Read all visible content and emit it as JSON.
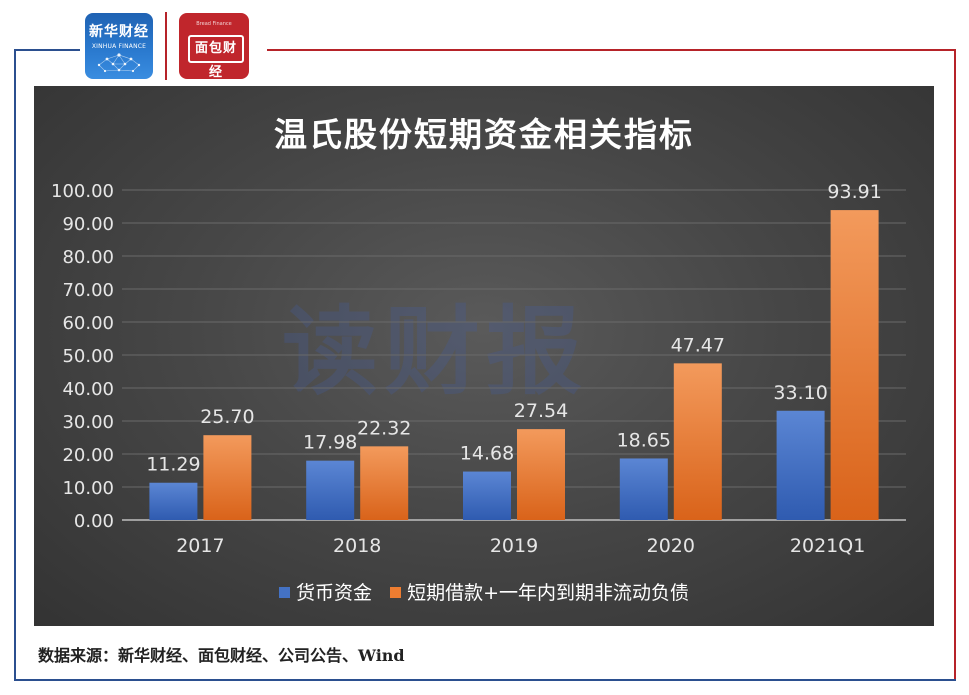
{
  "header": {
    "logo_left_cn": "新华财经",
    "logo_left_en": "XINHUA FINANCE",
    "logo_right_cn": "面包财经",
    "logo_right_en": "Bread Finance"
  },
  "watermark": "读财报",
  "source_text": "数据来源：新华财经、面包财经、公司公告、Wind",
  "colors": {
    "frame_blue": "#2b4f8f",
    "frame_red": "#b62329",
    "series_blue": "#4472c4",
    "series_orange": "#ed7d31"
  },
  "chart_data": {
    "type": "bar",
    "title": "温氏股份短期资金相关指标",
    "categories": [
      "2017",
      "2018",
      "2019",
      "2020",
      "2021Q1"
    ],
    "series": [
      {
        "name": "货币资金",
        "values": [
          11.29,
          17.98,
          14.68,
          18.65,
          33.1
        ],
        "labels": [
          "11.29",
          "17.98",
          "14.68",
          "18.65",
          "33.10"
        ],
        "color": "#4472c4"
      },
      {
        "name": "短期借款+一年内到期非流动负债",
        "values": [
          25.7,
          22.32,
          27.54,
          47.47,
          93.91
        ],
        "labels": [
          "25.70",
          "22.32",
          "27.54",
          "47.47",
          "93.91"
        ],
        "color": "#ed7d31"
      }
    ],
    "ylim": [
      0,
      100
    ],
    "yticks": [
      "0.00",
      "10.00",
      "20.00",
      "30.00",
      "40.00",
      "50.00",
      "60.00",
      "70.00",
      "80.00",
      "90.00",
      "100.00"
    ],
    "grid": true,
    "legend_position": "bottom"
  }
}
